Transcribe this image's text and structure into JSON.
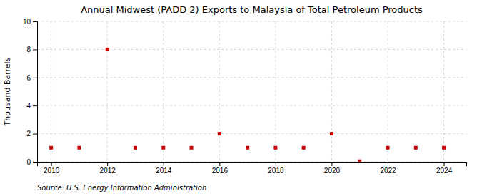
{
  "chart_data": {
    "type": "scatter",
    "title": "Annual Midwest (PADD 2) Exports to Malaysia of Total Petroleum Products",
    "ylabel": "Thousand Barrels",
    "source": "Source: U.S. Energy Information Administration",
    "x": [
      2010,
      2011,
      2012,
      2013,
      2014,
      2015,
      2016,
      2017,
      2018,
      2019,
      2020,
      2021,
      2022,
      2023,
      2024
    ],
    "values": [
      1,
      1,
      8,
      1,
      1,
      1,
      2,
      1,
      1,
      1,
      2,
      0.04,
      1,
      1,
      1
    ],
    "color": "#cc0000",
    "marker": "square",
    "xlim": [
      2009.5,
      2024.8
    ],
    "xticks": [
      2010,
      2012,
      2014,
      2016,
      2018,
      2020,
      2022,
      2024
    ],
    "ylim": [
      0,
      10
    ],
    "yticks": [
      0,
      2,
      4,
      6,
      8,
      10
    ],
    "grid": true
  }
}
